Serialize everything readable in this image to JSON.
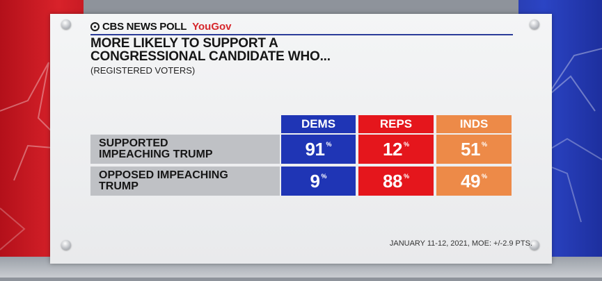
{
  "brand": {
    "name": "CBS NEWS POLL",
    "partner": "YouGov"
  },
  "title_lines": [
    "MORE LIKELY TO SUPPORT A",
    "CONGRESSIONAL CANDIDATE WHO..."
  ],
  "subtitle": "(REGISTERED VOTERS)",
  "footer": "JANUARY 11-12, 2021, MOE: +/-2.9 PTS.",
  "colors": {
    "dems": "#1f35b5",
    "reps": "#e5161c",
    "inds": "#ed8a48",
    "label_bg": "#bfc1c5",
    "rule": "#2a3b99"
  },
  "chart_data": {
    "type": "table",
    "title": "MORE LIKELY TO SUPPORT A CONGRESSIONAL CANDIDATE WHO...",
    "subtitle": "(REGISTERED VOTERS)",
    "columns": [
      "DEMS",
      "REPS",
      "INDS"
    ],
    "unit": "%",
    "rows": [
      {
        "label": "SUPPORTED IMPEACHING TRUMP",
        "label_lines": [
          "SUPPORTED",
          "IMPEACHING TRUMP"
        ],
        "values": [
          91,
          12,
          51
        ]
      },
      {
        "label": "OPPOSED IMPEACHING TRUMP",
        "label_lines": [
          "OPPOSED IMPEACHING",
          "TRUMP"
        ],
        "values": [
          9,
          88,
          49
        ]
      }
    ]
  }
}
